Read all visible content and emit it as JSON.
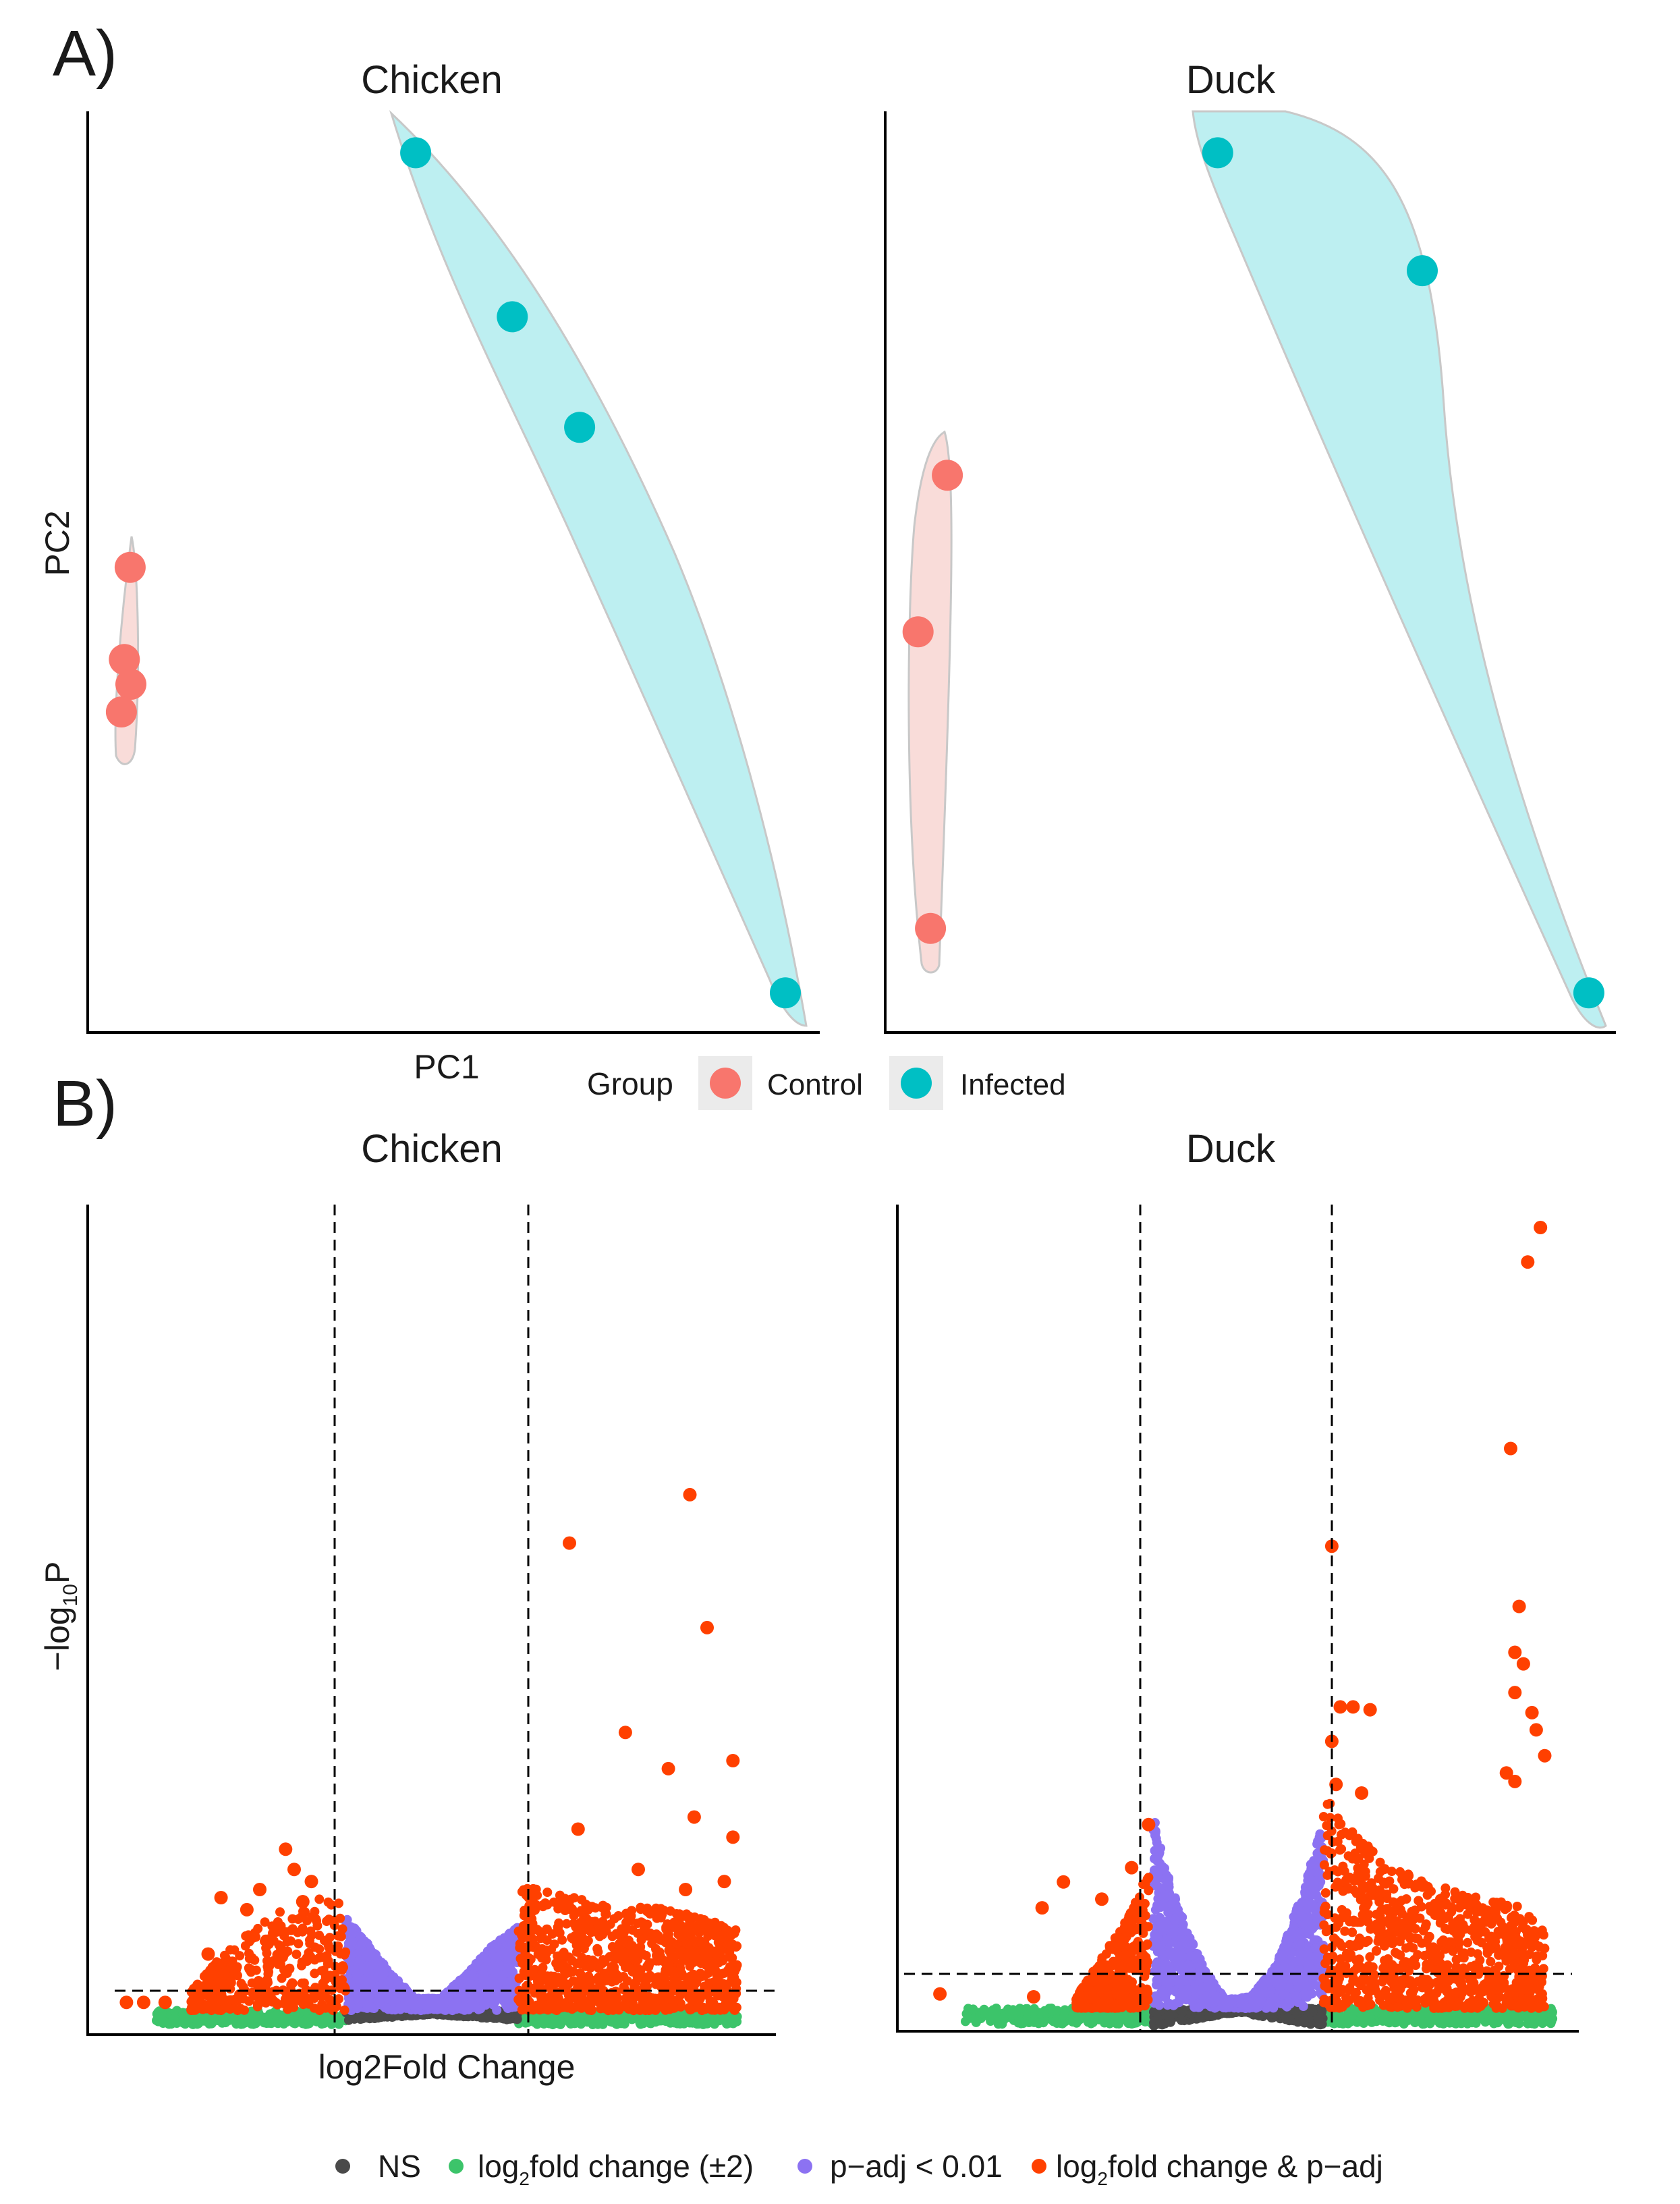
{
  "panel_labels": {
    "a": "A)",
    "b": "B)"
  },
  "colors": {
    "control": "#F8766D",
    "infected": "#00BFC4",
    "control_fill": "#F9DCD9",
    "infected_fill": "#BDEFF1",
    "ns": "#4A4A4A",
    "fc": "#3CC46A",
    "padj": "#8C72F2",
    "both": "#FF4000"
  },
  "chart_data": [
    {
      "type": "scatter",
      "title": "Chicken",
      "xlabel": "PC1",
      "ylabel": "PC2",
      "xlim": [
        0,
        100
      ],
      "ylim": [
        0,
        100
      ],
      "groups": [
        {
          "name": "Control",
          "x": [
            5.8,
            5.0,
            5.9,
            4.6
          ],
          "y": [
            50.5,
            40.5,
            37.8,
            34.8
          ]
        },
        {
          "name": "Infected",
          "x": [
            44.8,
            58.0,
            67.2,
            95.3
          ],
          "y": [
            95.5,
            77.7,
            65.7,
            4.3
          ]
        }
      ]
    },
    {
      "type": "scatter",
      "title": "Duck",
      "xlabel": "",
      "ylabel": "",
      "xlim": [
        0,
        100
      ],
      "ylim": [
        0,
        100
      ],
      "groups": [
        {
          "name": "Control",
          "x": [
            8.5,
            4.5,
            6.2
          ],
          "y": [
            60.5,
            43.5,
            11.3
          ]
        },
        {
          "name": "Infected",
          "x": [
            45.5,
            73.5,
            96.3
          ],
          "y": [
            95.5,
            82.7,
            4.3
          ]
        }
      ]
    },
    {
      "type": "scatter",
      "title": "Chicken",
      "xlabel": "log2Fold Change",
      "ylabel": "-log10P",
      "xlim": [
        -8,
        8
      ],
      "ylim": [
        -0.6,
        20
      ],
      "thresholds": {
        "fc": [
          -2,
          2
        ],
        "p": 0
      },
      "points": [
        {
          "x": -5.2,
          "y": 1.4
        },
        {
          "x": -4.9,
          "y": 2.8
        },
        {
          "x": -4.3,
          "y": 2.5
        },
        {
          "x": -4.0,
          "y": 3.0
        },
        {
          "x": -3.4,
          "y": 4.0
        },
        {
          "x": -3.2,
          "y": 3.5
        },
        {
          "x": -3.0,
          "y": 2.7
        },
        {
          "x": -2.8,
          "y": 3.2
        },
        {
          "x": -7.1,
          "y": 0.2
        },
        {
          "x": -6.7,
          "y": 0.2
        },
        {
          "x": -6.2,
          "y": 0.2
        },
        {
          "x": 6.0,
          "y": 12.8
        },
        {
          "x": 6.4,
          "y": 9.5
        },
        {
          "x": 3.2,
          "y": 11.6
        },
        {
          "x": 4.5,
          "y": 6.9
        },
        {
          "x": 5.5,
          "y": 6.0
        },
        {
          "x": 7.0,
          "y": 6.2
        },
        {
          "x": 6.1,
          "y": 4.8
        },
        {
          "x": 7.0,
          "y": 4.3
        },
        {
          "x": 3.4,
          "y": 4.5
        },
        {
          "x": 6.8,
          "y": 3.2
        },
        {
          "x": 5.9,
          "y": 3.0
        },
        {
          "x": 4.8,
          "y": 3.5
        }
      ]
    },
    {
      "type": "scatter",
      "title": "Duck",
      "xlabel": "",
      "ylabel": "",
      "xlim": [
        -8,
        8
      ],
      "ylim": [
        -0.8,
        28
      ],
      "thresholds": {
        "fc": [
          -2,
          2
        ],
        "p": 0
      },
      "points": [
        {
          "x": 7.1,
          "y": 27.2
        },
        {
          "x": 6.8,
          "y": 26.0
        },
        {
          "x": 6.4,
          "y": 19.5
        },
        {
          "x": 2.2,
          "y": 16.1
        },
        {
          "x": 6.6,
          "y": 14.0
        },
        {
          "x": 6.5,
          "y": 12.4
        },
        {
          "x": 6.7,
          "y": 12.0
        },
        {
          "x": 6.5,
          "y": 11.0
        },
        {
          "x": 2.4,
          "y": 10.5
        },
        {
          "x": 2.7,
          "y": 10.5
        },
        {
          "x": 3.1,
          "y": 10.4
        },
        {
          "x": 6.9,
          "y": 10.3
        },
        {
          "x": 7.0,
          "y": 9.7
        },
        {
          "x": 2.2,
          "y": 9.3
        },
        {
          "x": 7.2,
          "y": 8.8
        },
        {
          "x": 6.3,
          "y": 8.2
        },
        {
          "x": 6.5,
          "y": 7.9
        },
        {
          "x": 2.3,
          "y": 7.8
        },
        {
          "x": 2.9,
          "y": 7.5
        },
        {
          "x": -2.1,
          "y": 6.4
        },
        {
          "x": -4.1,
          "y": 4.4
        },
        {
          "x": -4.6,
          "y": 3.5
        },
        {
          "x": -3.2,
          "y": 3.8
        },
        {
          "x": -2.5,
          "y": 4.9
        },
        {
          "x": -7.0,
          "y": 0.5
        },
        {
          "x": -4.8,
          "y": 0.4
        }
      ]
    }
  ],
  "legend_pca": {
    "title": "Group",
    "items": [
      "Control",
      "Infected"
    ]
  },
  "legend_volcano": {
    "ns": "NS",
    "fc_pre": "log",
    "fc_sub": "2",
    "fc_post": "fold change (±2)",
    "padj": "p−adj < 0.01",
    "both_pre": "log",
    "both_sub": "2",
    "both_post": "fold change & p−adj"
  }
}
